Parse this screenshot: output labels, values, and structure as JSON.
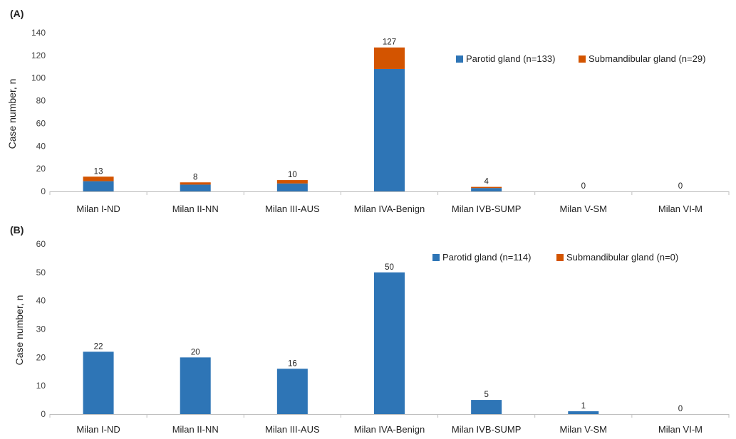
{
  "colors": {
    "parotid": "#2e75b6",
    "submandibular": "#d35400",
    "axis": "#bfbfbf"
  },
  "chart_data": [
    {
      "type": "bar",
      "stacked": true,
      "panel": "(A)",
      "title": "",
      "xlabel": "",
      "ylabel": "Case number, n",
      "ylim": [
        0,
        140
      ],
      "yticks": [
        0,
        20,
        40,
        60,
        80,
        100,
        120,
        140
      ],
      "grid": false,
      "legend_position": "top-right",
      "categories": [
        "Milan I-ND",
        "Milan II-NN",
        "Milan III-AUS",
        "Milan IVA-Benign",
        "Milan IVB-SUMP",
        "Milan V-SM",
        "Milan VI-M"
      ],
      "series": [
        {
          "name": "Parotid gland (n=133)",
          "values": [
            9,
            6,
            7,
            108,
            3,
            0,
            0
          ]
        },
        {
          "name": "Submandibular gland (n=29)",
          "values": [
            4,
            2,
            3,
            19,
            1,
            0,
            0
          ]
        }
      ],
      "totals": [
        13,
        8,
        10,
        127,
        4,
        0,
        0
      ]
    },
    {
      "type": "bar",
      "stacked": true,
      "panel": "(B)",
      "title": "",
      "xlabel": "",
      "ylabel": "Case number, n",
      "ylim": [
        0,
        60
      ],
      "yticks": [
        0,
        10,
        20,
        30,
        40,
        50,
        60
      ],
      "grid": false,
      "legend_position": "top-right",
      "categories": [
        "Milan I-ND",
        "Milan II-NN",
        "Milan III-AUS",
        "Milan IVA-Benign",
        "Milan IVB-SUMP",
        "Milan V-SM",
        "Milan VI-M"
      ],
      "series": [
        {
          "name": "Parotid gland (n=114)",
          "values": [
            22,
            20,
            16,
            50,
            5,
            1,
            0
          ]
        },
        {
          "name": "Submandibular gland (n=0)",
          "values": [
            0,
            0,
            0,
            0,
            0,
            0,
            0
          ]
        }
      ],
      "totals": [
        22,
        20,
        16,
        50,
        5,
        1,
        0
      ]
    }
  ]
}
